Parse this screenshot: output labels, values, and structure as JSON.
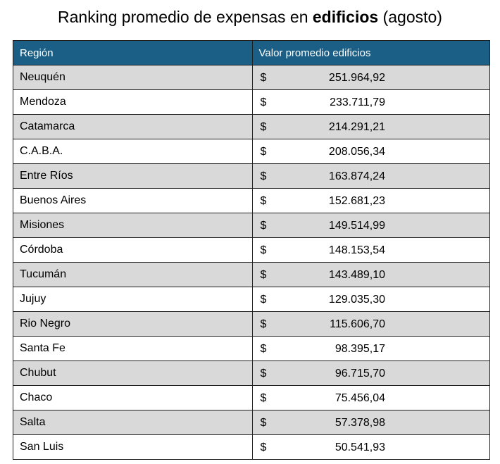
{
  "title": {
    "prefix": "Ranking promedio de expensas en ",
    "bold": "edificios",
    "suffix": " (agosto)"
  },
  "headers": {
    "region": "Región",
    "value": "Valor promedio edificios"
  },
  "currency_symbol": "$",
  "colors": {
    "header_bg": "#1b5f86",
    "header_text": "#ffffff",
    "row_shade": "#d9d9d9",
    "row_plain": "#ffffff"
  },
  "chart_data": {
    "type": "table",
    "title": "Ranking promedio de expensas en edificios (agosto)",
    "columns": [
      "Región",
      "Valor promedio edificios"
    ],
    "rows": [
      {
        "region": "Neuquén",
        "value": "251.964,92"
      },
      {
        "region": "Mendoza",
        "value": "233.711,79"
      },
      {
        "region": "Catamarca",
        "value": "214.291,21"
      },
      {
        "region": "C.A.B.A.",
        "value": "208.056,34"
      },
      {
        "region": "Entre Ríos",
        "value": "163.874,24"
      },
      {
        "region": "Buenos Aires",
        "value": "152.681,23"
      },
      {
        "region": "Misiones",
        "value": "149.514,99"
      },
      {
        "region": "Córdoba",
        "value": "148.153,54"
      },
      {
        "region": "Tucumán",
        "value": "143.489,10"
      },
      {
        "region": "Jujuy",
        "value": "129.035,30"
      },
      {
        "region": "Rio Negro",
        "value": "115.606,70"
      },
      {
        "region": "Santa Fe",
        "value": "98.395,17"
      },
      {
        "region": "Chubut",
        "value": "96.715,70"
      },
      {
        "region": "Chaco",
        "value": "75.456,04"
      },
      {
        "region": "Salta",
        "value": "57.378,98"
      },
      {
        "region": "San Luis",
        "value": "50.541,93"
      }
    ]
  }
}
